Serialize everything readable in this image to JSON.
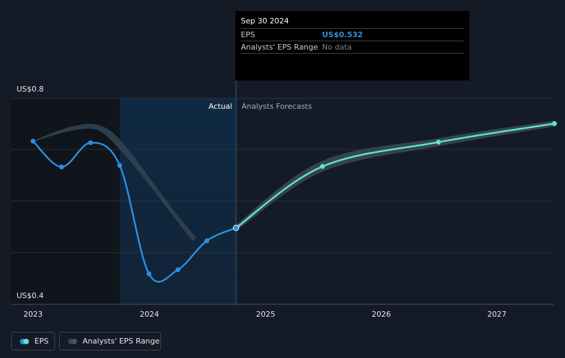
{
  "chart_data": {
    "type": "line",
    "y_tick_labels": [
      "US$0.8",
      "US$0.4"
    ],
    "ylim": [
      0.4,
      0.8
    ],
    "xlim": [
      2023,
      2027.5
    ],
    "x_ticks": [
      "2023",
      "2024",
      "2025",
      "2026",
      "2027"
    ],
    "region_labels": {
      "actual": "Actual",
      "forecast": "Analysts Forecasts"
    },
    "series": [
      {
        "name": "EPS",
        "kind": "actual",
        "color": "#2d8fe0",
        "points": [
          {
            "x": "2022-12-31",
            "y": 0.7
          },
          {
            "x": "2023-03-31",
            "y": 0.65
          },
          {
            "x": "2023-06-30",
            "y": 0.697
          },
          {
            "x": "2023-09-30",
            "y": 0.653
          },
          {
            "x": "2023-12-31",
            "y": 0.443
          },
          {
            "x": "2024-03-31",
            "y": 0.451
          },
          {
            "x": "2024-06-30",
            "y": 0.507
          },
          {
            "x": "2024-09-30",
            "y": 0.532
          }
        ]
      },
      {
        "name": "EPS",
        "kind": "forecast",
        "color": "#5fe3cf",
        "points": [
          {
            "x": "2024-09-30",
            "y": 0.532
          },
          {
            "x": "2025-06-30",
            "y": 0.651
          },
          {
            "x": "2026-06-30",
            "y": 0.698
          },
          {
            "x": "2027-06-30",
            "y": 0.734
          }
        ]
      },
      {
        "name": "Analysts' EPS Range",
        "kind": "range",
        "color": "#3b4a56",
        "points": [
          {
            "x": "2024-09-30",
            "low": 0.532,
            "high": 0.532
          },
          {
            "x": "2025-06-30",
            "low": 0.646,
            "high": 0.657
          },
          {
            "x": "2026-06-30",
            "low": 0.695,
            "high": 0.701
          },
          {
            "x": "2027-06-30",
            "low": 0.733,
            "high": 0.735
          }
        ]
      }
    ],
    "tooltip": {
      "date": "Sep 30 2024",
      "rows": [
        {
          "label": "EPS",
          "value": "US$0.532"
        },
        {
          "label": "Analysts' EPS Range",
          "value": "No data"
        }
      ]
    },
    "legend": [
      "EPS",
      "Analysts' EPS Range"
    ],
    "grid": true,
    "legend_position": "bottom-left"
  }
}
